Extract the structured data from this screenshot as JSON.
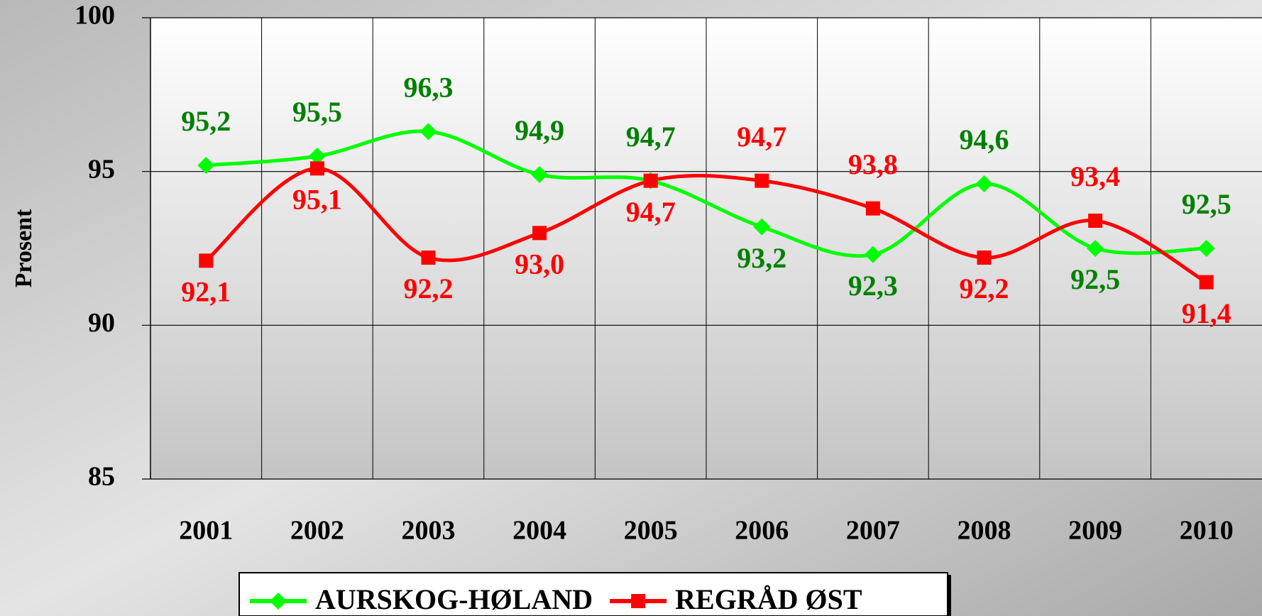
{
  "chart_data": {
    "type": "line",
    "y_label": "Prosent",
    "categories": [
      "2001",
      "2002",
      "2003",
      "2004",
      "2005",
      "2006",
      "2007",
      "2008",
      "2009",
      "2010"
    ],
    "series": [
      {
        "name": "AURSKOG-HØLAND",
        "color": "#00ff00",
        "label_color": "#008000",
        "marker": "diamond",
        "values": [
          95.2,
          95.5,
          96.3,
          94.9,
          94.7,
          93.2,
          92.3,
          94.6,
          92.5,
          92.5
        ],
        "value_labels": [
          "95,2",
          "95,5",
          "96,3",
          "94,9",
          "94,7",
          "93,2",
          "92,3",
          "94,6",
          "92,5",
          "92,5"
        ]
      },
      {
        "name": "REGRÅD ØST",
        "color": "#ff0000",
        "label_color": "#ff0000",
        "marker": "square",
        "values": [
          92.1,
          95.1,
          92.2,
          93.0,
          94.7,
          94.7,
          93.8,
          92.2,
          93.4,
          91.4
        ],
        "value_labels": [
          "92,1",
          "95,1",
          "92,2",
          "93,0",
          "94,7",
          "94,7",
          "93,8",
          "92,2",
          "93,4",
          "91,4"
        ]
      }
    ],
    "ylim": [
      85,
      100
    ],
    "yticks": [
      85,
      90,
      95,
      100
    ],
    "grid": true,
    "legend": "bottom"
  }
}
